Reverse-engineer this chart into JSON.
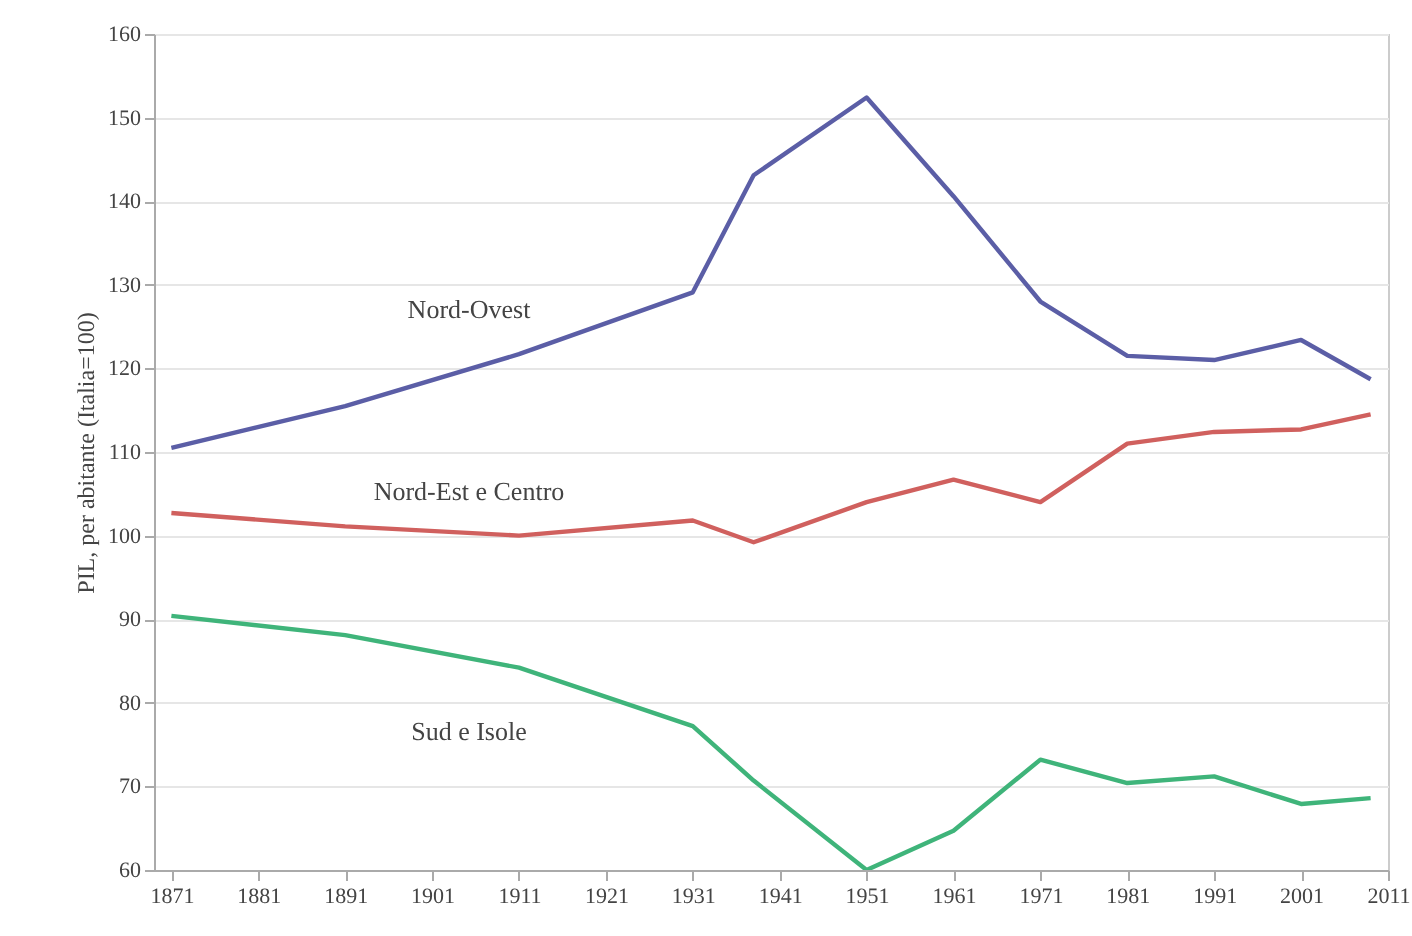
{
  "chart_data": {
    "type": "line",
    "ylabel": "PIL, per abitante (Italia=100)",
    "xlim": [
      1869,
      2011
    ],
    "xticks": [
      1871,
      1881,
      1891,
      1901,
      1911,
      1921,
      1931,
      1941,
      1951,
      1961,
      1971,
      1981,
      1991,
      2001,
      2011
    ],
    "ylim": [
      60,
      160
    ],
    "yticks": [
      60,
      70,
      80,
      90,
      100,
      110,
      120,
      130,
      140,
      150,
      160
    ],
    "grid": "y",
    "line_style": "solid",
    "series": [
      {
        "name": "Nord-Ovest",
        "color": "#5b5ea6",
        "x": [
          1871,
          1891,
          1911,
          1931,
          1938,
          1951,
          1961,
          1971,
          1981,
          1991,
          2001,
          2009
        ],
        "values": [
          110.5,
          115.5,
          121.7,
          129.1,
          143.1,
          152.4,
          140.6,
          128,
          121.5,
          121,
          123.4,
          118.7
        ]
      },
      {
        "name": "Nord-Est e Centro",
        "color": "#d0605e",
        "x": [
          1871,
          1891,
          1911,
          1931,
          1938,
          1951,
          1961,
          1971,
          1981,
          1991,
          2001,
          2009
        ],
        "values": [
          102.7,
          101.1,
          100,
          101.8,
          99.2,
          104,
          106.7,
          104,
          111,
          112.4,
          112.7,
          114.5
        ]
      },
      {
        "name": "Sud e Isole",
        "color": "#3fb47a",
        "x": [
          1871,
          1891,
          1911,
          1931,
          1938,
          1951,
          1961,
          1971,
          1981,
          1991,
          2001,
          2009
        ],
        "values": [
          90.4,
          88.1,
          84.2,
          77.2,
          70.7,
          60,
          64.7,
          73.2,
          70.4,
          71.2,
          67.9,
          68.6
        ]
      }
    ]
  }
}
